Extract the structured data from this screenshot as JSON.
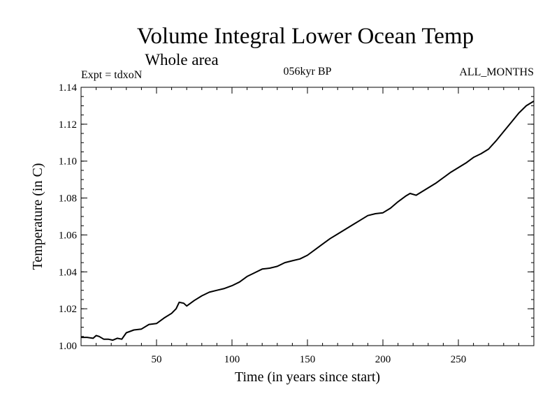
{
  "chart_data": {
    "type": "line",
    "title": "Volume Integral Lower Ocean Temp",
    "subtitle": "Whole area",
    "annotations": {
      "experiment": "Expt = tdxoN",
      "period": "056kyr BP",
      "months": "ALL_MONTHS"
    },
    "xlabel": "Time (in years since start)",
    "ylabel": "Temperature (in C)",
    "xlim": [
      0,
      300
    ],
    "ylim": [
      1.0,
      1.14
    ],
    "x_ticks": [
      50,
      100,
      150,
      200,
      250
    ],
    "x_tick_labels": [
      "50",
      "100",
      "150",
      "200",
      "250"
    ],
    "y_ticks": [
      1.0,
      1.02,
      1.04,
      1.06,
      1.08,
      1.1,
      1.12,
      1.14
    ],
    "y_tick_labels": [
      "1.00",
      "1.02",
      "1.04",
      "1.06",
      "1.08",
      "1.10",
      "1.12",
      "1.14"
    ],
    "x_minor_step": 10,
    "y_minor_step": 0.005,
    "grid": false,
    "line_color": "#000000",
    "series": [
      {
        "x": [
          0,
          4,
          8,
          10,
          12,
          15,
          18,
          21,
          24,
          27,
          30,
          35,
          40,
          45,
          50,
          55,
          60,
          63,
          65,
          68,
          70,
          75,
          80,
          85,
          90,
          95,
          100,
          105,
          110,
          115,
          120,
          125,
          130,
          135,
          140,
          145,
          150,
          155,
          160,
          165,
          170,
          175,
          180,
          185,
          190,
          195,
          200,
          205,
          210,
          215,
          218,
          222,
          225,
          230,
          235,
          240,
          245,
          250,
          255,
          260,
          265,
          270,
          275,
          280,
          285,
          290,
          295,
          300
        ],
        "values": [
          1.0045,
          1.0045,
          1.004,
          1.0055,
          1.005,
          1.0035,
          1.0035,
          1.003,
          1.004,
          1.0035,
          1.007,
          1.0085,
          1.009,
          1.0115,
          1.012,
          1.015,
          1.0175,
          1.02,
          1.0235,
          1.023,
          1.0215,
          1.0245,
          1.027,
          1.029,
          1.03,
          1.031,
          1.0325,
          1.0345,
          1.0375,
          1.0395,
          1.0415,
          1.042,
          1.043,
          1.045,
          1.046,
          1.047,
          1.049,
          1.052,
          1.055,
          1.058,
          1.0605,
          1.063,
          1.0655,
          1.068,
          1.0705,
          1.0715,
          1.072,
          1.0745,
          1.078,
          1.081,
          1.0825,
          1.0815,
          1.083,
          1.0855,
          1.088,
          1.091,
          1.094,
          1.0965,
          1.099,
          1.102,
          1.104,
          1.1065,
          1.111,
          1.116,
          1.121,
          1.126,
          1.13,
          1.1325
        ]
      }
    ]
  }
}
